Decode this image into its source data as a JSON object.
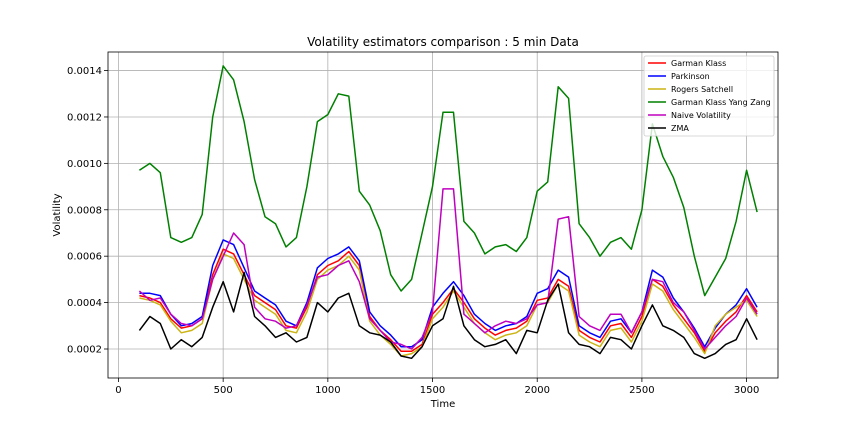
{
  "chart_data": {
    "type": "line",
    "title": "Volatility estimators comparison : 5 min Data",
    "xlabel": "Time",
    "ylabel": "Volatility",
    "xlim": [
      -50,
      3150
    ],
    "ylim": [
      7.5e-05,
      0.00148
    ],
    "xticks": [
      0,
      500,
      1000,
      1500,
      2000,
      2500,
      3000
    ],
    "xtick_labels": [
      "0",
      "500",
      "1000",
      "1500",
      "2000",
      "2500",
      "3000"
    ],
    "yticks": [
      0.0002,
      0.0004,
      0.0006,
      0.0008,
      0.001,
      0.0012,
      0.0014
    ],
    "ytick_labels": [
      "0.0002",
      "0.0004",
      "0.0006",
      "0.0008",
      "0.0010",
      "0.0012",
      "0.0014"
    ],
    "grid": true,
    "legend_position": "top-right",
    "x": [
      100,
      150,
      200,
      250,
      300,
      350,
      400,
      450,
      500,
      550,
      600,
      650,
      700,
      750,
      800,
      850,
      900,
      950,
      1000,
      1050,
      1100,
      1150,
      1200,
      1250,
      1300,
      1350,
      1400,
      1450,
      1500,
      1550,
      1600,
      1650,
      1700,
      1750,
      1800,
      1850,
      1900,
      1950,
      2000,
      2050,
      2100,
      2150,
      2200,
      2250,
      2300,
      2350,
      2400,
      2450,
      2500,
      2550,
      2600,
      2650,
      2700,
      2750,
      2800,
      2850,
      2900,
      2950,
      3000,
      3050
    ],
    "series": [
      {
        "name": "Garman Klass",
        "color": "#ff0000",
        "values": [
          0.00043,
          0.00042,
          0.0004,
          0.00033,
          0.00029,
          0.0003,
          0.00033,
          0.00052,
          0.00063,
          0.00061,
          0.00052,
          0.00043,
          0.0004,
          0.00037,
          0.0003,
          0.00029,
          0.00038,
          0.00052,
          0.00056,
          0.00058,
          0.00062,
          0.00056,
          0.00034,
          0.00028,
          0.00024,
          0.00019,
          0.00019,
          0.00022,
          0.00035,
          0.0004,
          0.00046,
          0.0004,
          0.00033,
          0.00029,
          0.00026,
          0.00028,
          0.00029,
          0.00032,
          0.00041,
          0.00042,
          0.0005,
          0.00047,
          0.00028,
          0.00025,
          0.00023,
          0.0003,
          0.00031,
          0.00025,
          0.00034,
          0.0005,
          0.00047,
          0.00039,
          0.00033,
          0.00027,
          0.00019,
          0.00027,
          0.00032,
          0.00036,
          0.00043,
          0.00036
        ]
      },
      {
        "name": "Parkinson",
        "color": "#0000ff",
        "values": [
          0.00044,
          0.00044,
          0.00043,
          0.00035,
          0.0003,
          0.00031,
          0.00034,
          0.00056,
          0.00067,
          0.00065,
          0.00055,
          0.00045,
          0.00042,
          0.00039,
          0.00032,
          0.0003,
          0.0004,
          0.00055,
          0.00059,
          0.00061,
          0.00064,
          0.00058,
          0.00036,
          0.0003,
          0.00026,
          0.00021,
          0.00021,
          0.00024,
          0.00038,
          0.00044,
          0.00049,
          0.00043,
          0.00035,
          0.00031,
          0.00028,
          0.0003,
          0.00031,
          0.00034,
          0.00044,
          0.00046,
          0.00054,
          0.00051,
          0.0003,
          0.00027,
          0.00025,
          0.00032,
          0.00033,
          0.00027,
          0.00036,
          0.00054,
          0.00051,
          0.00042,
          0.00036,
          0.00029,
          0.00021,
          0.00029,
          0.00035,
          0.00039,
          0.00046,
          0.00038
        ]
      },
      {
        "name": "Rogers Satchell",
        "color": "#ccb414",
        "values": [
          0.00042,
          0.00041,
          0.00039,
          0.00032,
          0.00027,
          0.00028,
          0.00031,
          0.0005,
          0.00061,
          0.00059,
          0.0005,
          0.00041,
          0.00038,
          0.00035,
          0.00028,
          0.00027,
          0.00036,
          0.0005,
          0.00054,
          0.00056,
          0.0006,
          0.00054,
          0.00032,
          0.00026,
          0.00022,
          0.00017,
          0.00018,
          0.00021,
          0.00033,
          0.00038,
          0.00045,
          0.00038,
          0.00031,
          0.00027,
          0.00024,
          0.00026,
          0.00027,
          0.0003,
          0.00039,
          0.0004,
          0.00048,
          0.00045,
          0.00026,
          0.00023,
          0.00021,
          0.00028,
          0.00029,
          0.00023,
          0.00032,
          0.00048,
          0.00045,
          0.00037,
          0.00031,
          0.00025,
          0.00018,
          0.0003,
          0.00035,
          0.00038,
          0.00041,
          0.00034
        ]
      },
      {
        "name": "Garman Klass Yang Zang",
        "color": "#008000",
        "values": [
          0.00097,
          0.001,
          0.00096,
          0.00068,
          0.00066,
          0.00068,
          0.00078,
          0.0012,
          0.00142,
          0.00136,
          0.00118,
          0.00093,
          0.00077,
          0.00074,
          0.00064,
          0.00068,
          0.0009,
          0.00118,
          0.00121,
          0.0013,
          0.00129,
          0.00088,
          0.00082,
          0.00071,
          0.00052,
          0.00045,
          0.0005,
          0.0007,
          0.0009,
          0.00122,
          0.00122,
          0.00075,
          0.0007,
          0.00061,
          0.00064,
          0.00065,
          0.00062,
          0.00068,
          0.00088,
          0.00092,
          0.00133,
          0.00128,
          0.00074,
          0.00068,
          0.0006,
          0.00066,
          0.00068,
          0.00063,
          0.0008,
          0.00117,
          0.00103,
          0.00094,
          0.00081,
          0.0006,
          0.00043,
          0.00051,
          0.00059,
          0.00075,
          0.00097,
          0.00079
        ]
      },
      {
        "name": "Naive Volatility",
        "color": "#bf00bf",
        "values": [
          0.00045,
          0.00041,
          0.00042,
          0.00035,
          0.00031,
          0.0003,
          0.00033,
          0.0005,
          0.0006,
          0.0007,
          0.00065,
          0.00038,
          0.00033,
          0.00032,
          0.00029,
          0.0003,
          0.00039,
          0.00051,
          0.00052,
          0.00056,
          0.00058,
          0.00049,
          0.00033,
          0.00028,
          0.00023,
          0.00022,
          0.0002,
          0.00025,
          0.00036,
          0.00089,
          0.00089,
          0.00035,
          0.00031,
          0.00027,
          0.0003,
          0.00032,
          0.00031,
          0.00033,
          0.00039,
          0.0004,
          0.00076,
          0.00077,
          0.00034,
          0.0003,
          0.00028,
          0.00035,
          0.00035,
          0.00027,
          0.00036,
          0.0005,
          0.00049,
          0.0004,
          0.00036,
          0.00028,
          0.0002,
          0.00025,
          0.0003,
          0.00034,
          0.00042,
          0.00035
        ]
      },
      {
        "name": "ZMA",
        "color": "#000000",
        "values": [
          0.00028,
          0.00034,
          0.00031,
          0.0002,
          0.00024,
          0.00021,
          0.00025,
          0.00038,
          0.00049,
          0.00036,
          0.00053,
          0.00034,
          0.0003,
          0.00025,
          0.00027,
          0.00023,
          0.00025,
          0.0004,
          0.00036,
          0.00042,
          0.00044,
          0.0003,
          0.00027,
          0.00026,
          0.00023,
          0.00017,
          0.00016,
          0.00021,
          0.0003,
          0.00033,
          0.00047,
          0.0003,
          0.00024,
          0.00021,
          0.00022,
          0.00024,
          0.00018,
          0.00028,
          0.00027,
          0.00041,
          0.00048,
          0.00027,
          0.00022,
          0.00021,
          0.00018,
          0.00025,
          0.00024,
          0.0002,
          0.0003,
          0.00039,
          0.0003,
          0.00028,
          0.00025,
          0.00018,
          0.00016,
          0.00018,
          0.00022,
          0.00024,
          0.00033,
          0.00024
        ]
      }
    ]
  }
}
